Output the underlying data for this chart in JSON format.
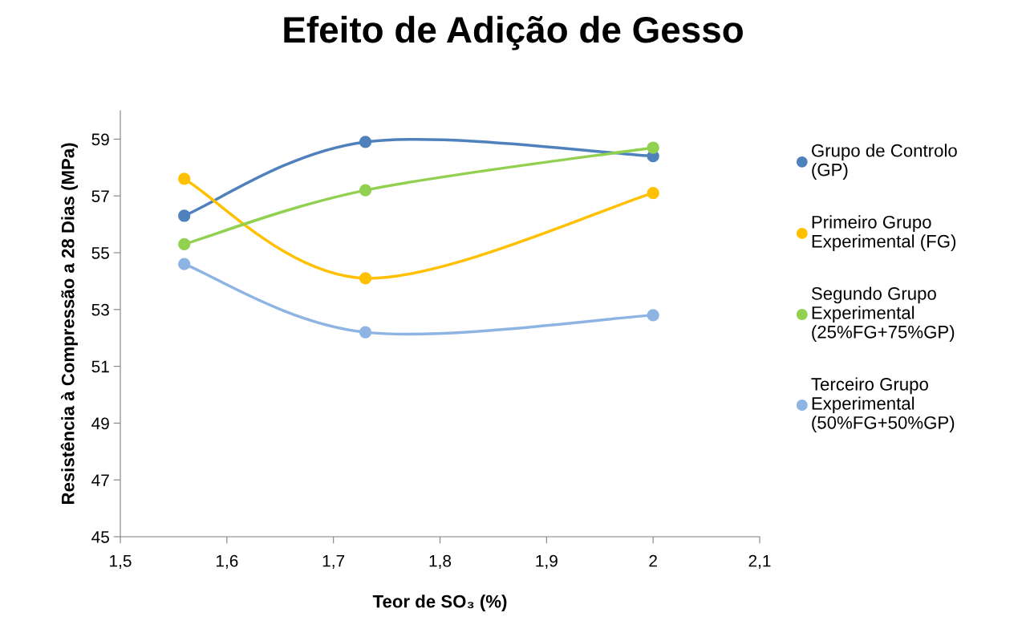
{
  "chart_data": {
    "type": "line",
    "title": "Efeito de Adição de Gesso",
    "xlabel": "Teor de SO₃ (%)",
    "ylabel": "Resistência à Compressão a 28 Dias (MPa)",
    "x": [
      1.56,
      1.73,
      2.0
    ],
    "series": [
      {
        "name": "Grupo de Controlo (GP)",
        "color": "#4f81bd",
        "values": [
          56.3,
          58.9,
          58.4
        ]
      },
      {
        "name": "Primeiro Grupo Experimental (FG)",
        "color": "#ffc000",
        "values": [
          57.6,
          54.1,
          57.1
        ]
      },
      {
        "name": "Segundo Grupo Experimental (25%FG+75%GP)",
        "color": "#92d050",
        "values": [
          55.3,
          57.2,
          58.7
        ]
      },
      {
        "name": "Terceiro Grupo Experimental (50%FG+50%GP)",
        "color": "#8db4e2",
        "values": [
          54.6,
          52.2,
          52.8
        ]
      }
    ],
    "xlim": [
      1.5,
      2.1
    ],
    "xticks": [
      {
        "value": 1.5,
        "label": "1,5"
      },
      {
        "value": 1.6,
        "label": "1,6"
      },
      {
        "value": 1.7,
        "label": "1,7"
      },
      {
        "value": 1.8,
        "label": "1,8"
      },
      {
        "value": 1.9,
        "label": "1,9"
      },
      2,
      {
        "value": 2.1,
        "label": "2,1"
      }
    ],
    "ylim": [
      45,
      60
    ],
    "yticks": [
      45,
      47,
      49,
      51,
      53,
      55,
      57,
      59
    ],
    "grid": false,
    "legend": "right",
    "marker": "circle"
  }
}
